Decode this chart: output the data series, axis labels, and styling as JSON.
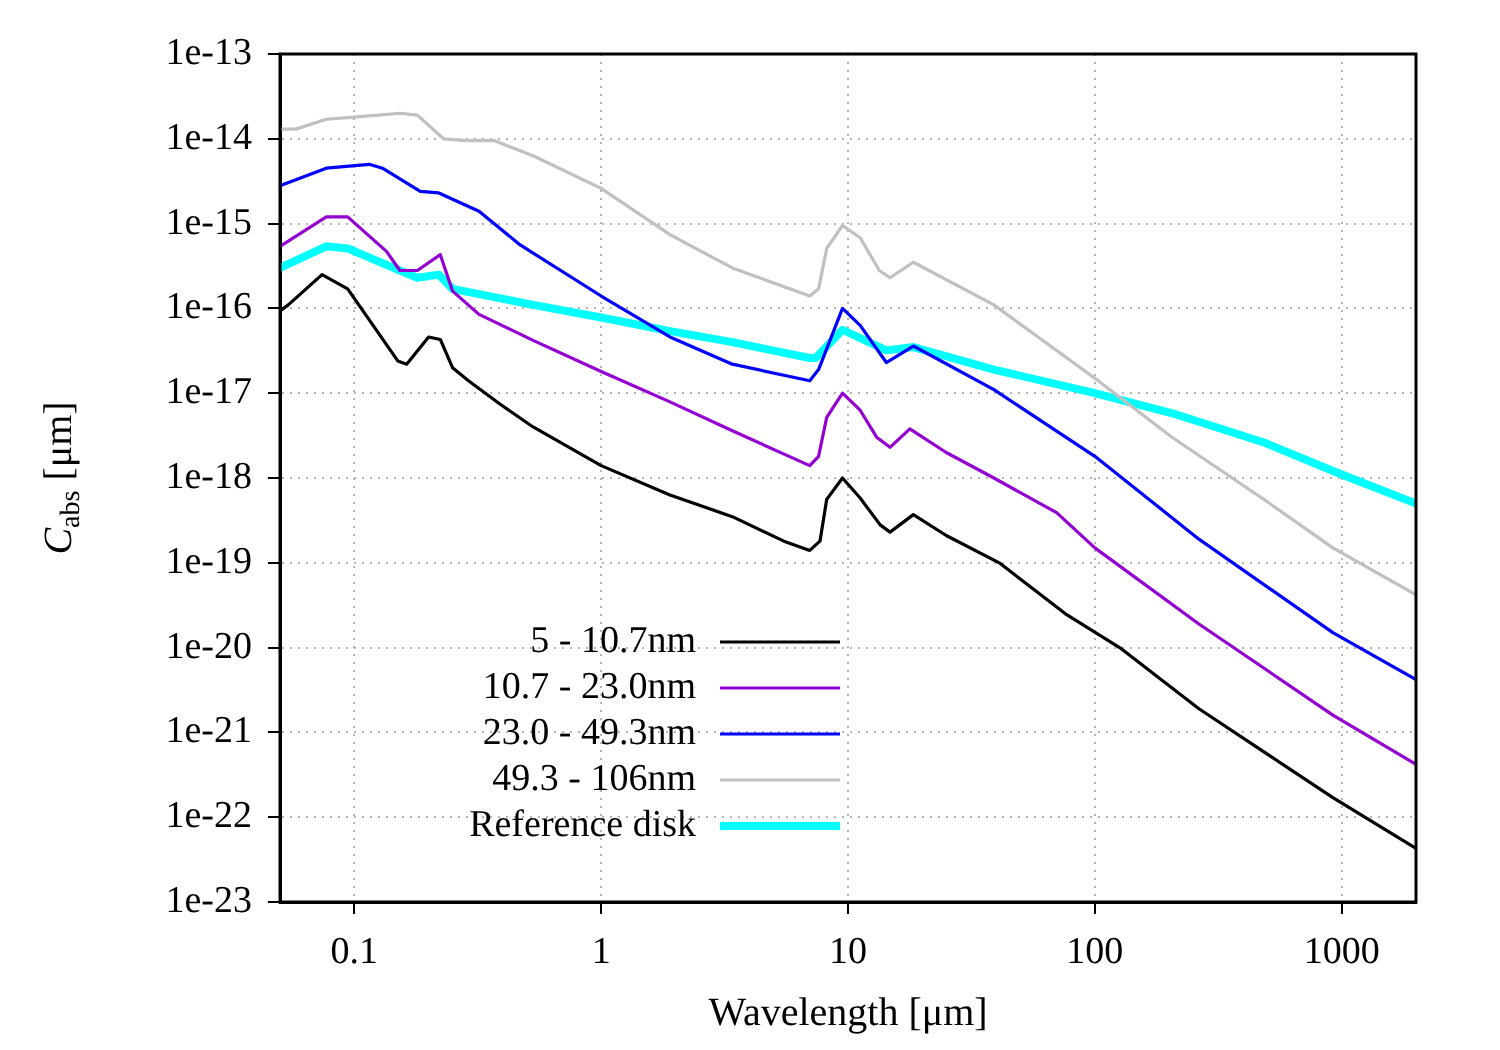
{
  "chart_data": {
    "type": "line",
    "xlabel": "Wavelength [μm]",
    "ylabel": "C$_{abs}$ [μm]",
    "log": "xy",
    "xlim": [
      0.05,
      2000
    ],
    "ylim": [
      1e-23,
      1e-13
    ],
    "xticks": [
      0.1,
      1,
      10,
      100,
      1000
    ],
    "yticks": [
      {
        "value": 1e-23,
        "label": "1e-23"
      },
      {
        "value": 1e-22,
        "label": "1e-22"
      },
      {
        "value": 1e-21,
        "label": "1e-21"
      },
      {
        "value": 1e-20,
        "label": "1e-20"
      },
      {
        "value": 1e-19,
        "label": "1e-19"
      },
      {
        "value": 1e-18,
        "label": "1e-18"
      },
      {
        "value": 1e-17,
        "label": "1e-17"
      },
      {
        "value": 1e-16,
        "label": "1e-16"
      },
      {
        "value": 1e-15,
        "label": "1e-15"
      },
      {
        "value": 1e-14,
        "label": "1e-14"
      },
      {
        "value": 1e-13,
        "label": "1e-13"
      }
    ],
    "grid": true,
    "legend": "bottom left",
    "marker": "none",
    "line_style": "solid",
    "series": [
      {
        "name": "5 - 10.7nm",
        "color": "#000000",
        "x": [
          0.05,
          0.054,
          0.074,
          0.094,
          0.15,
          0.163,
          0.2,
          0.223,
          0.25,
          0.29,
          0.39,
          0.53,
          1,
          1.9,
          3.4,
          5.5,
          7,
          7.7,
          8.2,
          9.5,
          11.2,
          13.5,
          14.8,
          18.4,
          25,
          41,
          76,
          126,
          264,
          921,
          2000
        ],
        "values": [
          9.3e-17,
          1.1e-16,
          2.5e-16,
          1.7e-16,
          2.4e-17,
          2.2e-17,
          4.6e-17,
          4.3e-17,
          2e-17,
          1.4e-17,
          7.4e-18,
          4e-18,
          1.4e-18,
          6.3e-19,
          3.5e-19,
          1.8e-19,
          1.4e-19,
          1.8e-19,
          5.6e-19,
          1e-18,
          5.8e-19,
          2.8e-19,
          2.3e-19,
          3.7e-19,
          2.1e-19,
          1e-19,
          2.5e-20,
          1e-20,
          1.9e-21,
          1.7e-22,
          4.3e-23
        ]
      },
      {
        "name": "10.7 - 23.0nm",
        "color": "#9400d3",
        "x": [
          0.05,
          0.077,
          0.094,
          0.135,
          0.153,
          0.18,
          0.223,
          0.25,
          0.32,
          0.53,
          1,
          1.9,
          3.4,
          7,
          7.6,
          8.2,
          9.5,
          11.2,
          13.1,
          14.8,
          17.8,
          25,
          39,
          70,
          100,
          264,
          921,
          2000
        ],
        "values": [
          5.4e-16,
          1.2e-15,
          1.2e-15,
          4.7e-16,
          2.8e-16,
          2.8e-16,
          4.3e-16,
          1.6e-16,
          8.5e-17,
          4.2e-17,
          1.8e-17,
          7.9e-18,
          3.6e-18,
          1.4e-18,
          1.8e-18,
          5.2e-18,
          1e-17,
          6.3e-18,
          3e-18,
          2.3e-18,
          3.8e-18,
          2e-18,
          1e-18,
          3.9e-19,
          1.5e-19,
          1.9e-20,
          1.6e-21,
          4.2e-22
        ]
      },
      {
        "name": "23.0 - 49.3nm",
        "color": "#0000ff",
        "x": [
          0.05,
          0.077,
          0.115,
          0.13,
          0.185,
          0.22,
          0.32,
          0.47,
          1,
          1.9,
          3.4,
          7,
          7.6,
          9.5,
          11.2,
          14.3,
          18.4,
          39,
          100,
          264,
          921,
          2000
        ],
        "values": [
          2.8e-15,
          4.5e-15,
          5e-15,
          4.5e-15,
          2.4e-15,
          2.3e-15,
          1.4e-15,
          5.6e-16,
          1.4e-16,
          4.6e-17,
          2.2e-17,
          1.4e-17,
          1.9e-17,
          1e-16,
          6.3e-17,
          2.3e-17,
          3.6e-17,
          1.1e-17,
          1.8e-18,
          1.9e-19,
          1.5e-20,
          4.2e-21
        ]
      },
      {
        "name": "49.3 - 106nm",
        "color": "#c0c0c0",
        "x": [
          0.05,
          0.058,
          0.077,
          0.1,
          0.153,
          0.18,
          0.23,
          0.28,
          0.37,
          0.53,
          1,
          1.9,
          3.4,
          7,
          7.6,
          8.2,
          9.5,
          11.2,
          13.4,
          14.8,
          18.4,
          39,
          100,
          206,
          488,
          921,
          2000
        ],
        "values": [
          1.3e-14,
          1.3e-14,
          1.7e-14,
          1.8e-14,
          2e-14,
          1.9e-14,
          1e-14,
          9.5e-15,
          9.5e-15,
          6.3e-15,
          2.6e-15,
          7.4e-16,
          3e-16,
          1.4e-16,
          1.7e-16,
          5.1e-16,
          9.5e-16,
          6.8e-16,
          2.8e-16,
          2.3e-16,
          3.5e-16,
          1.1e-16,
          1.5e-17,
          3e-18,
          5.5e-19,
          1.5e-19,
          4.2e-20
        ]
      },
      {
        "name": "Reference disk",
        "color": "#00ffff",
        "x": [
          0.05,
          0.077,
          0.094,
          0.153,
          0.18,
          0.22,
          0.25,
          0.53,
          1,
          1.9,
          3.4,
          7,
          7.4,
          9.5,
          14.3,
          18.4,
          39,
          100,
          206,
          488,
          1000,
          2000
        ],
        "values": [
          3e-16,
          5.4e-16,
          5.1e-16,
          2.8e-16,
          2.3e-16,
          2.5e-16,
          1.7e-16,
          1.1e-16,
          7.8e-17,
          5.4e-17,
          4e-17,
          2.6e-17,
          2.6e-17,
          5.6e-17,
          3.2e-17,
          3.5e-17,
          1.9e-17,
          1e-17,
          5.8e-18,
          2.6e-18,
          1.1e-18,
          5e-19
        ]
      }
    ]
  }
}
